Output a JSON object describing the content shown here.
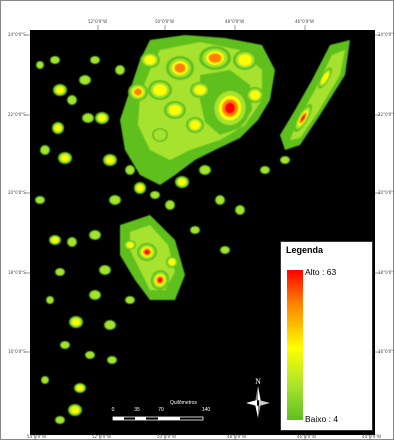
{
  "map": {
    "background_color": "#000000",
    "ramp_colors": [
      "#5fbf1f",
      "#a6e22e",
      "#ffff00",
      "#ff8000",
      "#ff0000"
    ]
  },
  "legend": {
    "title": "Legenda",
    "high_label": "Alto : 63",
    "low_label": "Baixo : 4",
    "high_value": 63,
    "low_value": 4
  },
  "scale": {
    "title": "Quilômetros",
    "ticks": [
      "0",
      "35",
      "70",
      "140"
    ]
  },
  "north_arrow": {
    "letter": "N"
  },
  "graticule": {
    "top": [
      "52°0'0\"W",
      "50°0'0\"W",
      "48°0'0\"W",
      "46°0'0\"W"
    ],
    "bottom": [
      "54°0'0\"W",
      "52°0'0\"W",
      "50°0'0\"W",
      "48°0'0\"W",
      "46°0'0\"W",
      "44°0'0\"W"
    ],
    "left": [
      "24°0'0\"S",
      "22°0'0\"S",
      "20°0'0\"S",
      "18°0'0\"S",
      "16°0'0\"S"
    ],
    "right": [
      "24°0'0\"S",
      "22°0'0\"S",
      "20°0'0\"S",
      "18°0'0\"S",
      "16°0'0\"S"
    ]
  }
}
